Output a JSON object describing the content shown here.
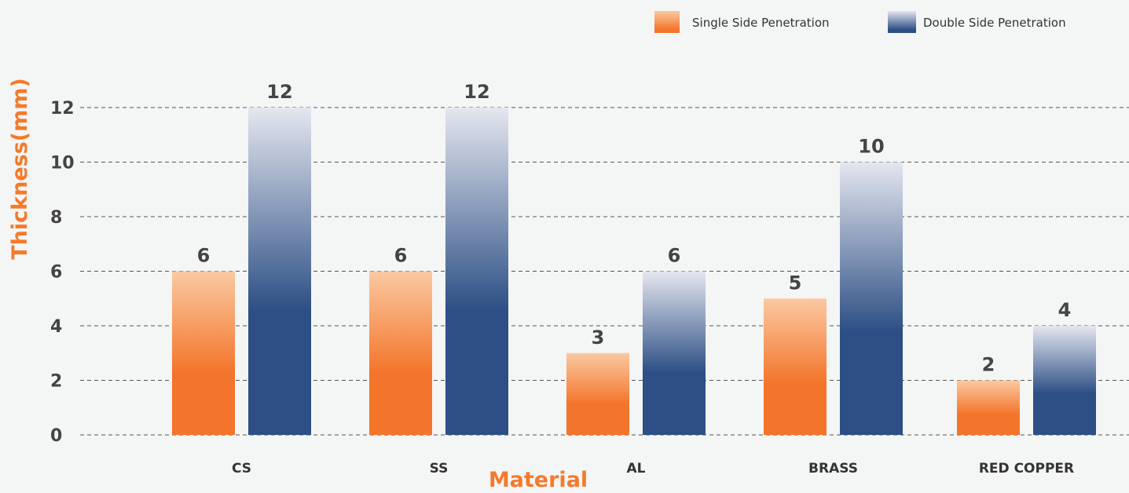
{
  "chart_data": {
    "type": "bar",
    "title": "",
    "xlabel": "Material",
    "ylabel": "Thickness(mm)",
    "categories": [
      "CS",
      "SS",
      "AL",
      "BRASS",
      "RED COPPER"
    ],
    "series": [
      {
        "name": "Single Side Penetration",
        "values": [
          6,
          6,
          3,
          5,
          2
        ]
      },
      {
        "name": "Double Side Penetration",
        "values": [
          12,
          12,
          6,
          10,
          4
        ]
      }
    ],
    "ylim": [
      0,
      12
    ],
    "yticks": [
      0,
      2,
      4,
      6,
      8,
      10,
      12
    ],
    "grid": true,
    "legend_position": "top-right",
    "colors": {
      "single_light": "#fbc9a2",
      "single_dark": "#f3752b",
      "double_light": "#e4e7ef",
      "double_dark": "#2d4f85",
      "axis_title": "#f47a2a",
      "grid": "#555555"
    }
  }
}
